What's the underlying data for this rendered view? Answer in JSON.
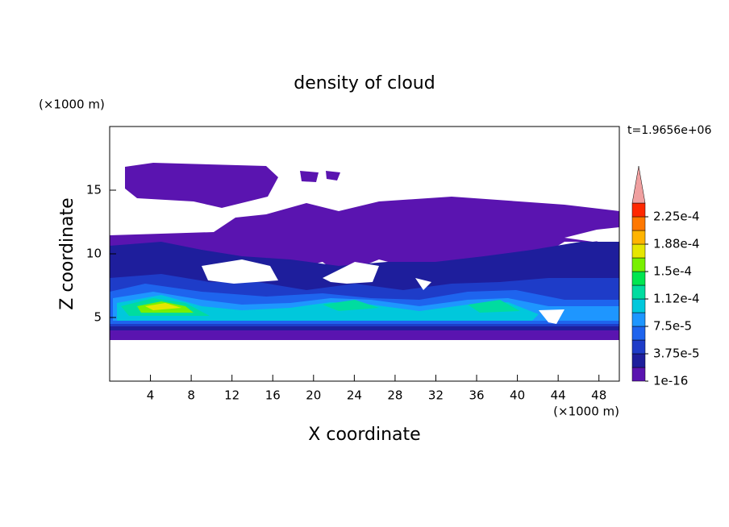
{
  "chart_data": {
    "type": "contour",
    "title": "density of cloud",
    "xlabel": "X coordinate",
    "ylabel": "Z coordinate",
    "xunit": "(×1000 m)",
    "yunit": "(×1000 m)",
    "time_label": "t=1.9656e+06",
    "xlim": [
      0,
      50
    ],
    "ylim": [
      0,
      20
    ],
    "xticks": [
      4,
      8,
      12,
      16,
      20,
      24,
      28,
      32,
      36,
      40,
      44,
      48
    ],
    "yticks": [
      5,
      10,
      15
    ],
    "colorbar": {
      "lim": [
        1e-16,
        0.00024375
      ],
      "colors": [
        "#5a14b0",
        "#1e1e9c",
        "#1e3cc8",
        "#1e64ee",
        "#1e96ff",
        "#00c8dc",
        "#00dca0",
        "#00e650",
        "#78f000",
        "#e6e600",
        "#ffb400",
        "#ff7800",
        "#ff2800"
      ],
      "extend_color": "#f0a0a0",
      "ticks": [
        {
          "value": 1e-16,
          "label": "1e-16"
        },
        {
          "value": 3.75e-05,
          "label": "3.75e-5"
        },
        {
          "value": 7.5e-05,
          "label": "7.5e-5"
        },
        {
          "value": 0.0001125,
          "label": "1.12e-4"
        },
        {
          "value": 0.00015,
          "label": "1.5e-4"
        },
        {
          "value": 0.0001875,
          "label": "1.88e-4"
        },
        {
          "value": 0.000225,
          "label": "2.25e-4"
        }
      ]
    }
  }
}
